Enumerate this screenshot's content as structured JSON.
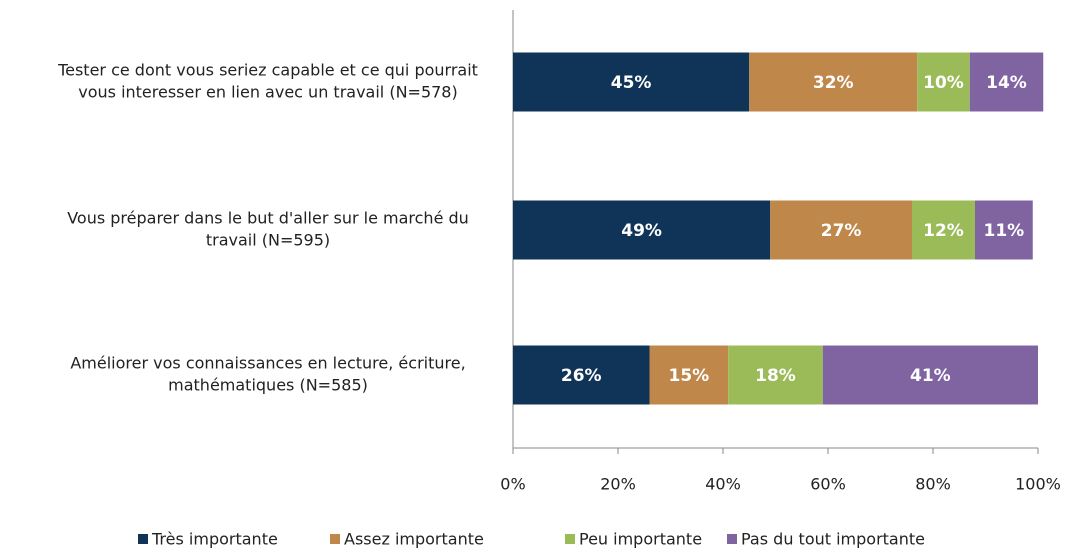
{
  "chart_data": {
    "type": "stacked-barh",
    "categories": [
      [
        "Tester ce dont vous seriez capable et ce qui pourrait",
        "vous interesser en lien avec un travail (N=578)"
      ],
      [
        "Vous préparer dans le but d'aller sur le marché du",
        "travail (N=595)"
      ],
      [
        "Améliorer vos connaissances en lecture, écriture,",
        "mathématiques (N=585)"
      ]
    ],
    "series": [
      {
        "name": "Très importante",
        "color": "#0f3457",
        "values": [
          45,
          49,
          26
        ],
        "value_labels": [
          "45%",
          "49%",
          "26%"
        ]
      },
      {
        "name": "Assez importante",
        "color": "#c0874a",
        "values": [
          32,
          27,
          15
        ],
        "value_labels": [
          "32%",
          "27%",
          "15%"
        ]
      },
      {
        "name": "Peu importante",
        "color": "#9bbb59",
        "values": [
          10,
          12,
          18
        ],
        "value_labels": [
          "10%",
          "12%",
          "18%"
        ]
      },
      {
        "name": "Pas du tout importante",
        "color": "#8064a2",
        "values": [
          14,
          11,
          41
        ],
        "value_labels": [
          "14%",
          "11%",
          "41%"
        ]
      }
    ],
    "xlim": [
      0,
      100
    ],
    "xticks": [
      {
        "value": 0,
        "label": "0%"
      },
      {
        "value": 20,
        "label": "20%"
      },
      {
        "value": 40,
        "label": "40%"
      },
      {
        "value": 60,
        "label": "60%"
      },
      {
        "value": 80,
        "label": "80%"
      },
      {
        "value": 100,
        "label": "100%"
      }
    ],
    "legend": "bottom"
  }
}
